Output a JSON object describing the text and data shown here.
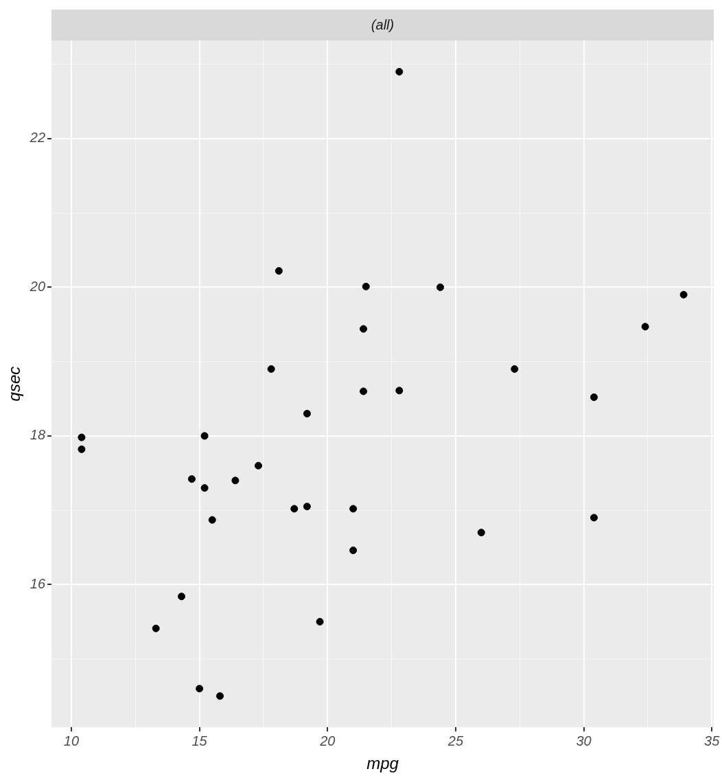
{
  "chart_data": {
    "type": "scatter",
    "subtitle": "(all)",
    "xlabel": "mpg",
    "ylabel": "qsec",
    "x": [
      21.0,
      21.0,
      22.8,
      21.4,
      18.7,
      18.1,
      14.3,
      24.4,
      22.8,
      19.2,
      17.8,
      16.4,
      17.3,
      15.2,
      10.4,
      10.4,
      14.7,
      32.4,
      30.4,
      33.9,
      21.5,
      15.5,
      15.2,
      13.3,
      19.2,
      27.3,
      26.0,
      30.4,
      15.8,
      19.7,
      15.0,
      21.4
    ],
    "values": [
      16.46,
      17.02,
      18.61,
      19.44,
      17.02,
      20.22,
      15.84,
      20.0,
      22.9,
      18.3,
      18.9,
      17.4,
      17.6,
      18.0,
      17.98,
      17.82,
      17.42,
      19.47,
      18.52,
      19.9,
      20.01,
      16.87,
      17.3,
      15.41,
      17.05,
      18.9,
      16.7,
      16.9,
      14.5,
      15.5,
      14.6,
      18.6
    ],
    "color": "#000000",
    "marker": "circle",
    "xlim": [
      9.225,
      35.075
    ],
    "xticks": [
      10,
      {
        "value": 12.5,
        "label": null
      },
      15,
      {
        "value": 17.5,
        "label": null
      },
      20,
      {
        "value": 22.5,
        "label": null
      },
      25,
      {
        "value": 27.5,
        "label": null
      },
      30,
      {
        "value": 32.5,
        "label": null
      },
      35
    ],
    "ylim": [
      14.08,
      23.32
    ],
    "yticks": [
      {
        "value": 15,
        "label": null
      },
      16,
      {
        "value": 17,
        "label": null
      },
      18,
      {
        "value": 19,
        "label": null
      },
      20,
      {
        "value": 21,
        "label": null
      },
      22,
      {
        "value": 23,
        "label": null
      }
    ],
    "grid": true,
    "legend": false
  }
}
